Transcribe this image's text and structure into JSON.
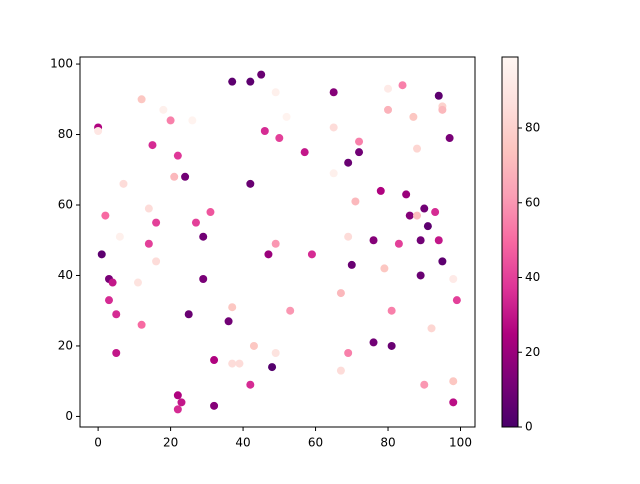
{
  "chart_data": {
    "type": "scatter",
    "x": [
      0,
      0,
      1,
      2,
      3,
      3,
      4,
      5,
      5,
      6,
      7,
      11,
      12,
      12,
      14,
      14,
      15,
      16,
      16,
      18,
      20,
      21,
      22,
      22,
      22,
      23,
      24,
      25,
      26,
      27,
      29,
      29,
      31,
      32,
      32,
      36,
      37,
      37,
      37,
      39,
      42,
      42,
      42,
      43,
      45,
      46,
      47,
      48,
      49,
      49,
      49,
      50,
      52,
      53,
      57,
      59,
      65,
      65,
      65,
      67,
      67,
      69,
      69,
      69,
      70,
      71,
      72,
      72,
      76,
      76,
      78,
      79,
      80,
      80,
      81,
      81,
      83,
      84,
      85,
      86,
      87,
      88,
      88,
      89,
      89,
      90,
      90,
      91,
      92,
      93,
      94,
      94,
      95,
      95,
      95,
      97,
      98,
      98,
      98,
      99
    ],
    "y": [
      82,
      81,
      46,
      57,
      39,
      33,
      38,
      29,
      18,
      51,
      66,
      38,
      90,
      26,
      59,
      49,
      77,
      55,
      44,
      87,
      84,
      68,
      74,
      6,
      2,
      4,
      68,
      29,
      84,
      55,
      51,
      39,
      58,
      16,
      3,
      27,
      95,
      31,
      15,
      15,
      95,
      66,
      9,
      20,
      97,
      81,
      46,
      14,
      92,
      49,
      18,
      79,
      85,
      30,
      75,
      46,
      92,
      82,
      69,
      35,
      13,
      72,
      51,
      18,
      43,
      61,
      78,
      75,
      50,
      21,
      64,
      42,
      93,
      87,
      30,
      20,
      49,
      94,
      63,
      57,
      85,
      76,
      57,
      50,
      40,
      59,
      9,
      54,
      25,
      58,
      91,
      50,
      88,
      87,
      44,
      79,
      39,
      10,
      4,
      33
    ],
    "c": [
      25,
      90,
      5,
      50,
      12,
      35,
      30,
      35,
      30,
      95,
      85,
      88,
      75,
      50,
      85,
      40,
      35,
      40,
      85,
      95,
      55,
      70,
      38,
      25,
      35,
      30,
      10,
      8,
      97,
      40,
      10,
      12,
      45,
      25,
      15,
      10,
      5,
      75,
      85,
      85,
      5,
      8,
      35,
      75,
      8,
      35,
      20,
      3,
      95,
      60,
      88,
      40,
      97,
      60,
      30,
      35,
      15,
      85,
      95,
      70,
      85,
      8,
      85,
      55,
      8,
      70,
      55,
      10,
      15,
      10,
      25,
      75,
      92,
      68,
      55,
      8,
      40,
      55,
      20,
      15,
      75,
      82,
      72,
      10,
      8,
      10,
      60,
      5,
      82,
      35,
      5,
      30,
      80,
      70,
      5,
      12,
      92,
      75,
      28,
      40
    ],
    "cmap": [
      "#49006a",
      "#7a0177",
      "#ae017e",
      "#dd3497",
      "#f768a1",
      "#fa9fb5",
      "#fcc5c0",
      "#fde0dd",
      "#fff7f3"
    ],
    "xlim": [
      -5,
      104
    ],
    "ylim": [
      -3,
      102
    ],
    "xticks": [
      0,
      20,
      40,
      60,
      80,
      100
    ],
    "yticks": [
      0,
      20,
      40,
      60,
      80,
      100
    ],
    "clim": [
      0,
      99
    ],
    "cticks": [
      0,
      20,
      40,
      60,
      80
    ]
  }
}
